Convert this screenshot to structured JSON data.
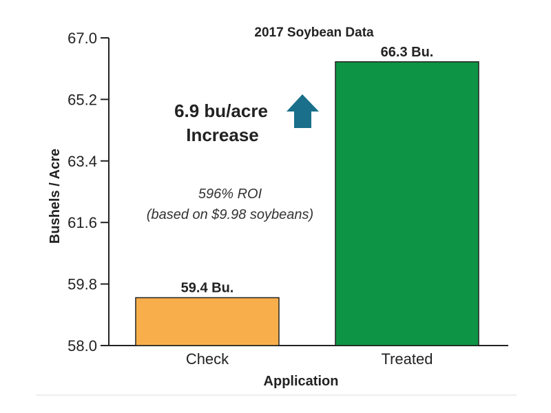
{
  "chart_data": {
    "type": "bar",
    "title": "2017 Soybean Data",
    "xlabel": "Application",
    "ylabel": "Bushels / Acre",
    "categories": [
      "Check",
      "Treated"
    ],
    "values": [
      59.4,
      66.3
    ],
    "data_labels": [
      "59.4 Bu.",
      "66.3 Bu."
    ],
    "bar_colors": [
      "#F8AF4B",
      "#0E9445"
    ],
    "ylim": [
      58.0,
      67.0
    ],
    "yticks": [
      58.0,
      59.8,
      61.6,
      63.4,
      65.2,
      67.0
    ],
    "ytick_labels": [
      "58.0",
      "59.8",
      "61.6",
      "63.4",
      "65.2",
      "67.0"
    ],
    "grid": false,
    "legend": "none",
    "annotations": {
      "increase_line1": "6.9 bu/acre",
      "increase_line2": "Increase",
      "roi_line1": "596% ROI",
      "roi_line2": "(based on $9.98 soybeans)",
      "arrow_color": "#1A6F8A",
      "arrow_icon": "up-arrow-icon"
    }
  }
}
